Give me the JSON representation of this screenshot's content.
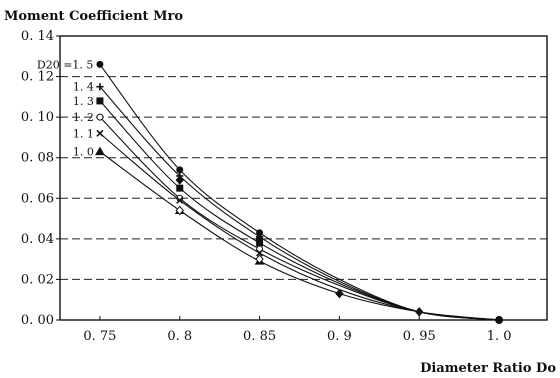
{
  "chart_data": {
    "type": "line",
    "title": "Moment Coefficient Mro",
    "xlabel": "Diameter Ratio Do",
    "ylabel": "",
    "x": [
      0.75,
      0.8,
      0.85,
      0.9,
      0.95,
      1.0
    ],
    "x_tick_labels": [
      "0. 75",
      "0. 8",
      "0. 85",
      "0. 9",
      "0. 95",
      "1. 0"
    ],
    "xlim": [
      0.725,
      1.03
    ],
    "ylim": [
      0.0,
      0.14
    ],
    "y_ticks": [
      0.0,
      0.02,
      0.04,
      0.06,
      0.08,
      0.1,
      0.12,
      0.14
    ],
    "y_tick_labels": [
      "0. 00",
      "0. 02",
      "0. 04",
      "0. 06",
      "0. 08",
      "0. 10",
      "0. 12",
      "0. 14"
    ],
    "grid": "horizontal dashed",
    "series_label_prefix": "D20 =",
    "series": [
      {
        "name": "1. 5",
        "marker": "filled-dot",
        "values": [
          0.126,
          0.074,
          0.043,
          0.02,
          0.004,
          0.0
        ]
      },
      {
        "name": "1. 4",
        "marker": "plus",
        "values": [
          0.115,
          0.071,
          0.041,
          0.019,
          0.004,
          0.0
        ]
      },
      {
        "name": "1. 3",
        "marker": "filled-square",
        "values": [
          0.108,
          0.065,
          0.038,
          0.018,
          0.004,
          0.0
        ]
      },
      {
        "name": "1. 2",
        "marker": "open-circle",
        "values": [
          0.1,
          0.06,
          0.035,
          0.017,
          0.004,
          0.0
        ]
      },
      {
        "name": "1. 1",
        "marker": "cross",
        "values": [
          0.092,
          0.059,
          0.033,
          0.015,
          0.004,
          0.0
        ]
      },
      {
        "name": "1. 0",
        "marker": "triangle",
        "values": [
          0.083,
          0.054,
          0.029,
          0.013,
          0.004,
          0.0
        ]
      }
    ],
    "data_point_markers": [
      {
        "x": 0.8,
        "y": 0.069,
        "marker": "filled-diamond"
      },
      {
        "x": 0.8,
        "y": 0.054,
        "marker": "open-diamond"
      },
      {
        "x": 0.85,
        "y": 0.04,
        "marker": "filled-diamond"
      },
      {
        "x": 0.85,
        "y": 0.03,
        "marker": "open-diamond"
      },
      {
        "x": 0.9,
        "y": 0.013,
        "marker": "filled-diamond"
      }
    ]
  }
}
